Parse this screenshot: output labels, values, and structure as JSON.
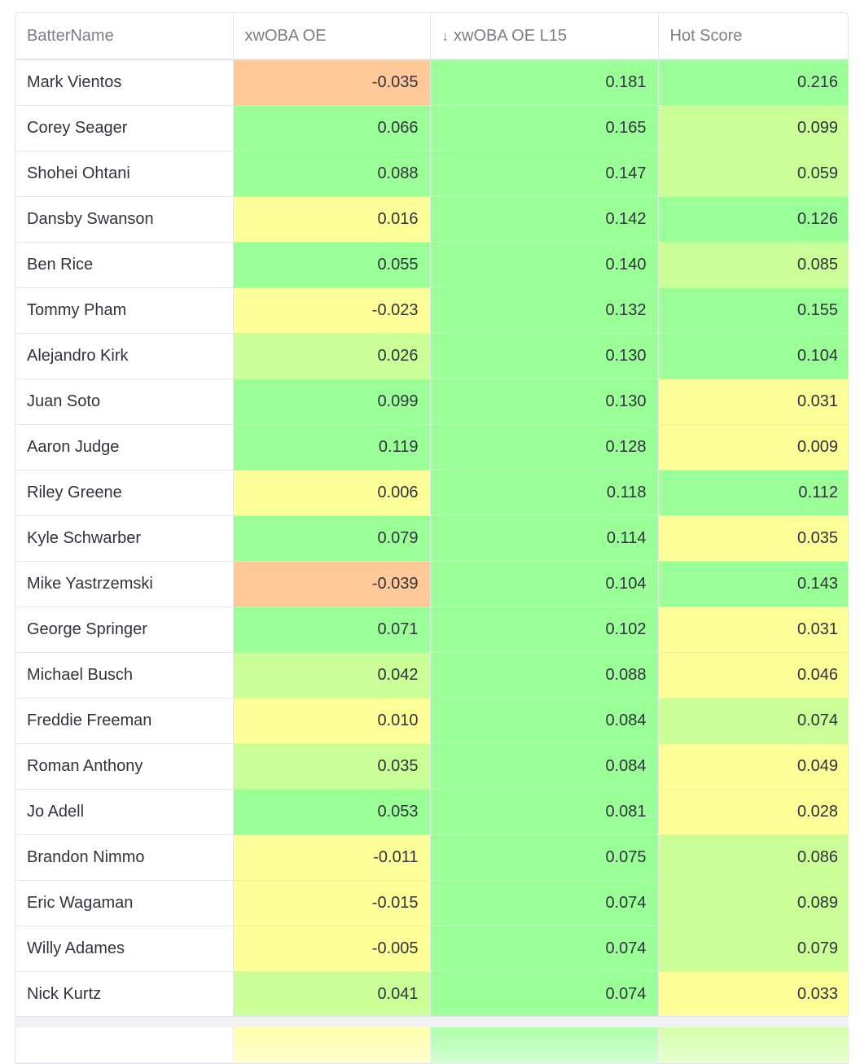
{
  "columns": [
    {
      "label": "BatterName",
      "sort_icon": ""
    },
    {
      "label": "xwOBA OE",
      "sort_icon": ""
    },
    {
      "label": "xwOBA OE L15",
      "sort_icon": "arrow-down-icon"
    },
    {
      "label": "Hot Score",
      "sort_icon": ""
    }
  ],
  "sort_arrow": "↓",
  "colors": {
    "orange": "#ffc898",
    "green": "#9bff98",
    "lime": "#caff98",
    "yellow": "#ffff98"
  },
  "rows": [
    {
      "name": "Mark Vientos",
      "xwoba_oe": "-0.035",
      "xwoba_oe_l15": "0.181",
      "hot_score": "0.216",
      "c1": "orange",
      "c2": "green",
      "c3": "green"
    },
    {
      "name": "Corey Seager",
      "xwoba_oe": "0.066",
      "xwoba_oe_l15": "0.165",
      "hot_score": "0.099",
      "c1": "green",
      "c2": "green",
      "c3": "lime"
    },
    {
      "name": "Shohei Ohtani",
      "xwoba_oe": "0.088",
      "xwoba_oe_l15": "0.147",
      "hot_score": "0.059",
      "c1": "green",
      "c2": "green",
      "c3": "lime"
    },
    {
      "name": "Dansby Swanson",
      "xwoba_oe": "0.016",
      "xwoba_oe_l15": "0.142",
      "hot_score": "0.126",
      "c1": "yellow",
      "c2": "green",
      "c3": "green"
    },
    {
      "name": "Ben Rice",
      "xwoba_oe": "0.055",
      "xwoba_oe_l15": "0.140",
      "hot_score": "0.085",
      "c1": "green",
      "c2": "green",
      "c3": "lime"
    },
    {
      "name": "Tommy Pham",
      "xwoba_oe": "-0.023",
      "xwoba_oe_l15": "0.132",
      "hot_score": "0.155",
      "c1": "yellow",
      "c2": "green",
      "c3": "green"
    },
    {
      "name": "Alejandro Kirk",
      "xwoba_oe": "0.026",
      "xwoba_oe_l15": "0.130",
      "hot_score": "0.104",
      "c1": "lime",
      "c2": "green",
      "c3": "green"
    },
    {
      "name": "Juan Soto",
      "xwoba_oe": "0.099",
      "xwoba_oe_l15": "0.130",
      "hot_score": "0.031",
      "c1": "green",
      "c2": "green",
      "c3": "yellow"
    },
    {
      "name": "Aaron Judge",
      "xwoba_oe": "0.119",
      "xwoba_oe_l15": "0.128",
      "hot_score": "0.009",
      "c1": "green",
      "c2": "green",
      "c3": "yellow"
    },
    {
      "name": "Riley Greene",
      "xwoba_oe": "0.006",
      "xwoba_oe_l15": "0.118",
      "hot_score": "0.112",
      "c1": "yellow",
      "c2": "green",
      "c3": "green"
    },
    {
      "name": "Kyle Schwarber",
      "xwoba_oe": "0.079",
      "xwoba_oe_l15": "0.114",
      "hot_score": "0.035",
      "c1": "green",
      "c2": "green",
      "c3": "yellow"
    },
    {
      "name": "Mike Yastrzemski",
      "xwoba_oe": "-0.039",
      "xwoba_oe_l15": "0.104",
      "hot_score": "0.143",
      "c1": "orange",
      "c2": "green",
      "c3": "green"
    },
    {
      "name": "George Springer",
      "xwoba_oe": "0.071",
      "xwoba_oe_l15": "0.102",
      "hot_score": "0.031",
      "c1": "green",
      "c2": "green",
      "c3": "yellow"
    },
    {
      "name": "Michael Busch",
      "xwoba_oe": "0.042",
      "xwoba_oe_l15": "0.088",
      "hot_score": "0.046",
      "c1": "lime",
      "c2": "green",
      "c3": "yellow"
    },
    {
      "name": "Freddie Freeman",
      "xwoba_oe": "0.010",
      "xwoba_oe_l15": "0.084",
      "hot_score": "0.074",
      "c1": "yellow",
      "c2": "green",
      "c3": "lime"
    },
    {
      "name": "Roman Anthony",
      "xwoba_oe": "0.035",
      "xwoba_oe_l15": "0.084",
      "hot_score": "0.049",
      "c1": "lime",
      "c2": "green",
      "c3": "yellow"
    },
    {
      "name": "Jo Adell",
      "xwoba_oe": "0.053",
      "xwoba_oe_l15": "0.081",
      "hot_score": "0.028",
      "c1": "green",
      "c2": "green",
      "c3": "yellow"
    },
    {
      "name": "Brandon Nimmo",
      "xwoba_oe": "-0.011",
      "xwoba_oe_l15": "0.075",
      "hot_score": "0.086",
      "c1": "yellow",
      "c2": "green",
      "c3": "lime"
    },
    {
      "name": "Eric Wagaman",
      "xwoba_oe": "-0.015",
      "xwoba_oe_l15": "0.074",
      "hot_score": "0.089",
      "c1": "yellow",
      "c2": "green",
      "c3": "lime"
    },
    {
      "name": "Willy Adames",
      "xwoba_oe": "-0.005",
      "xwoba_oe_l15": "0.074",
      "hot_score": "0.079",
      "c1": "yellow",
      "c2": "green",
      "c3": "lime"
    },
    {
      "name": "Nick Kurtz",
      "xwoba_oe": "0.041",
      "xwoba_oe_l15": "0.074",
      "hot_score": "0.033",
      "c1": "lime",
      "c2": "green",
      "c3": "yellow"
    }
  ],
  "partial_row": {
    "c1": "yellow",
    "c2": "green",
    "c3": "lime"
  }
}
